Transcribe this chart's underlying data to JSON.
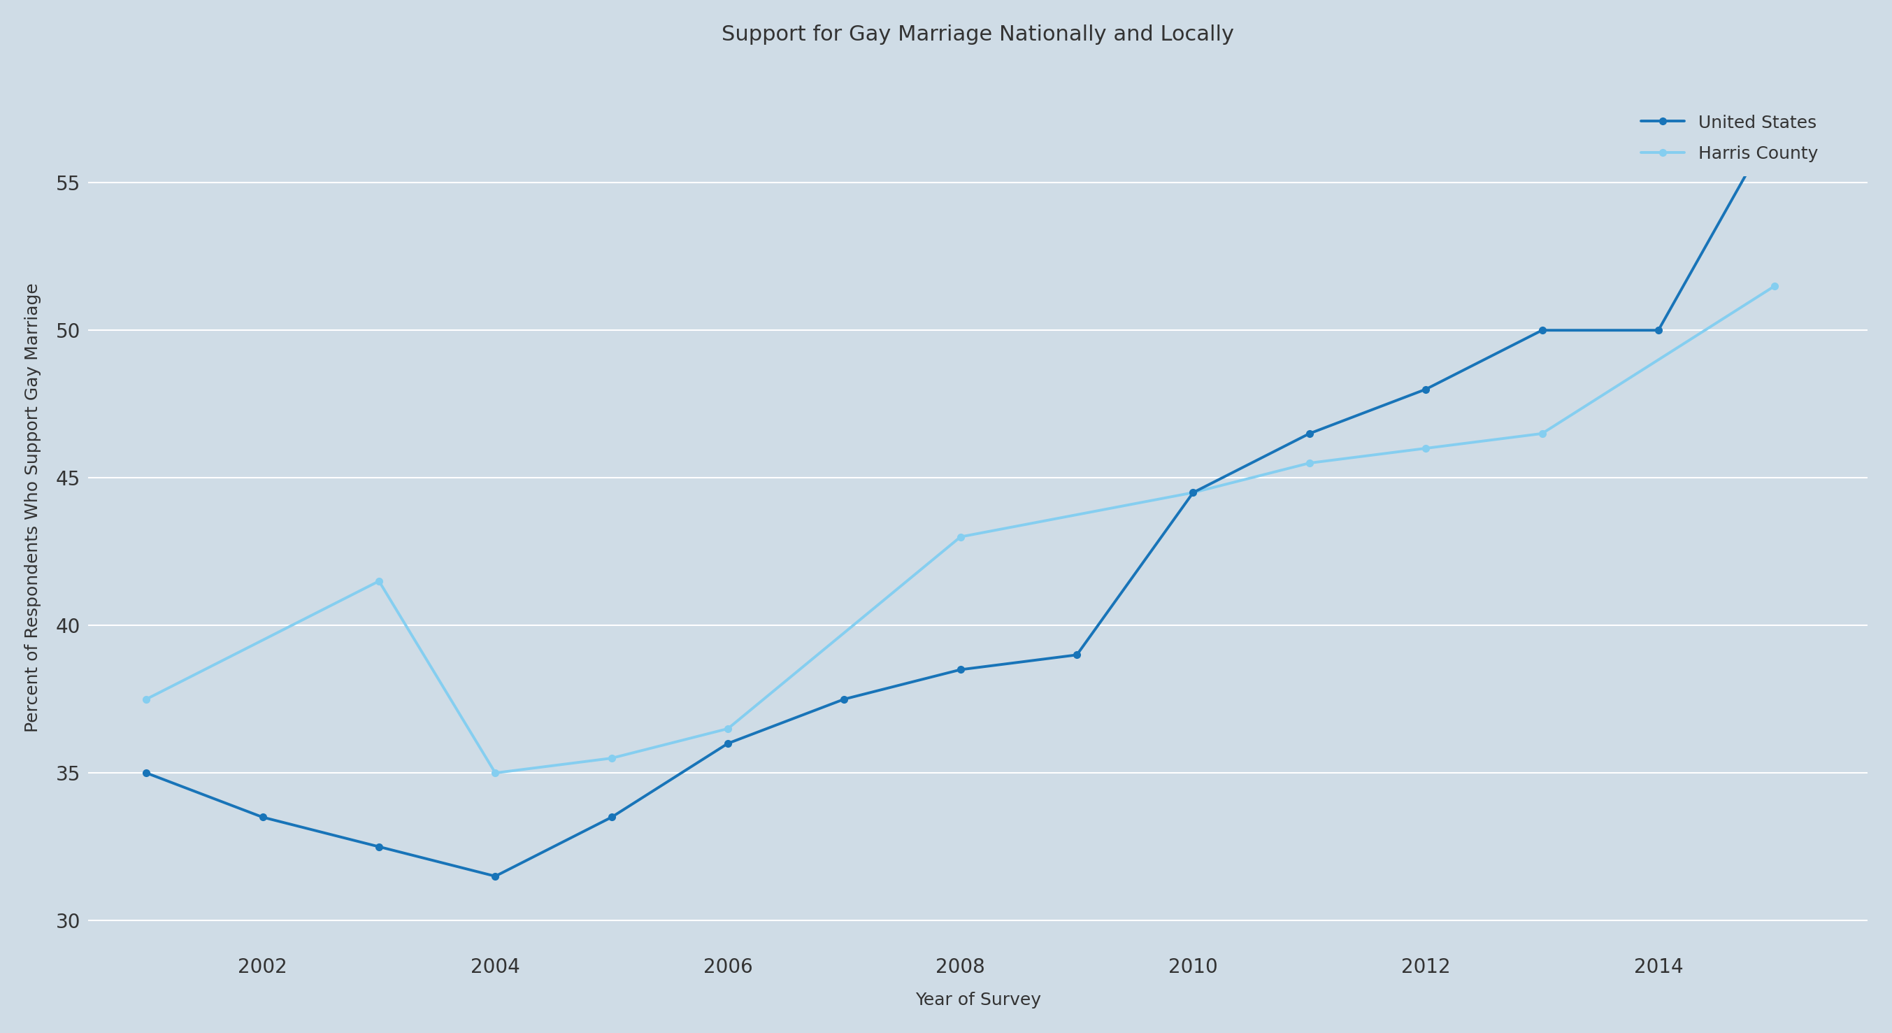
{
  "title": "Support for Gay Marriage Nationally and Locally",
  "xlabel": "Year of Survey",
  "ylabel": "Percent of Respondents Who Support Gay Marriage",
  "background_color": "#cfdce6",
  "us_years": [
    2001,
    2002,
    2003,
    2004,
    2005,
    2006,
    2007,
    2008,
    2009,
    2010,
    2011,
    2012,
    2013,
    2014,
    2015
  ],
  "us_values": [
    35.0,
    33.5,
    32.5,
    31.5,
    33.5,
    36.0,
    37.5,
    38.5,
    39.0,
    44.5,
    46.5,
    48.0,
    50.0,
    50.0,
    57.0
  ],
  "harris_years": [
    2001,
    2003,
    2004,
    2005,
    2006,
    2008,
    2010,
    2011,
    2012,
    2013,
    2015
  ],
  "harris_values": [
    37.5,
    41.5,
    35.0,
    35.5,
    36.5,
    43.0,
    44.5,
    45.5,
    46.0,
    46.5,
    51.5
  ],
  "us_color": "#1874b8",
  "harris_color": "#85cef0",
  "ylim": [
    29,
    59
  ],
  "yticks": [
    30,
    35,
    40,
    45,
    50,
    55
  ],
  "xticks": [
    2002,
    2004,
    2006,
    2008,
    2010,
    2012,
    2014
  ],
  "legend_labels": [
    "United States",
    "Harris County"
  ],
  "title_fontsize": 22,
  "axis_label_fontsize": 18,
  "tick_fontsize": 20,
  "legend_fontsize": 18,
  "line_width": 2.8,
  "marker": "o",
  "marker_size": 7
}
